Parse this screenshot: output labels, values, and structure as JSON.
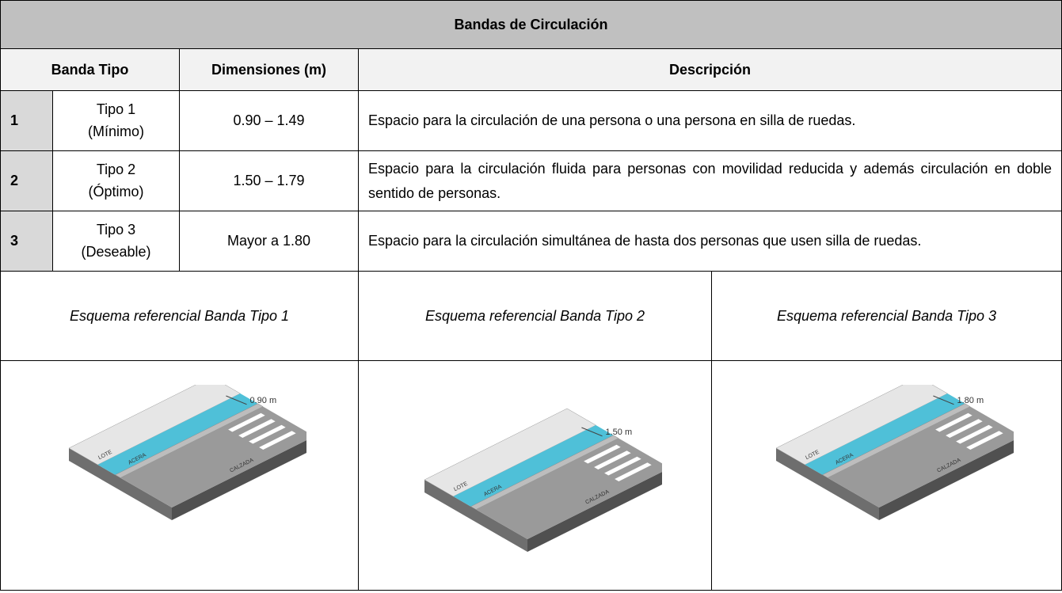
{
  "header": {
    "title": "Bandas de Circulación"
  },
  "table": {
    "columns": [
      "Banda Tipo",
      "Dimensiones (m)",
      "Descripción"
    ],
    "rows": [
      {
        "number": "1",
        "type": [
          "Tipo 1",
          "(Mínimo)"
        ],
        "dimensions": "0.90 – 1.49",
        "description": "Espacio para la circulación de una persona o una persona en silla de ruedas."
      },
      {
        "number": "2",
        "type": [
          "Tipo 2",
          "(Óptimo)"
        ],
        "dimensions": "1.50 – 1.79",
        "description": "Espacio para la circulación fluida para personas con movilidad reducida y además circulación en doble sentido de personas."
      },
      {
        "number": "3",
        "type": [
          "Tipo 3",
          "(Deseable)"
        ],
        "dimensions": "Mayor a 1.80",
        "description": "Espacio para la circulación simultánea de hasta dos personas que usen silla de ruedas."
      }
    ]
  },
  "schemes": [
    {
      "caption": "Esquema referencial Banda Tipo 1",
      "width_label": "0.90 m",
      "lote": "LOTE",
      "acera": "ACERA",
      "calzada": "CALZADA"
    },
    {
      "caption": "Esquema referencial Banda Tipo 2",
      "width_label": "1.50 m",
      "lote": "LOTE",
      "acera": "ACERA",
      "calzada": "CALZADA"
    },
    {
      "caption": "Esquema referencial Banda Tipo 3",
      "width_label": "1.80 m",
      "lote": "LOTE",
      "acera": "ACERA",
      "calzada": "CALZADA"
    }
  ]
}
